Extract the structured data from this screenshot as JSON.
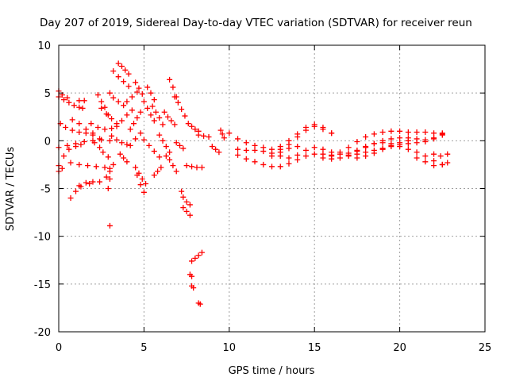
{
  "chart_data": {
    "type": "scatter",
    "title": "Day 207 of 2019, Sidereal Day-to-day VTEC variation (SDTVAR) for receiver reun",
    "xlabel": "GPS time / hours",
    "ylabel": "SDTVAR / TECUs",
    "xlim": [
      0,
      25
    ],
    "ylim": [
      -20,
      10
    ],
    "xticks": [
      "0",
      "5",
      "10",
      "15",
      "20",
      "25"
    ],
    "yticks": [
      "-20",
      "-15",
      "-10",
      "-5",
      "0",
      "5",
      "10"
    ],
    "grid": true,
    "marker": "+",
    "series": [
      {
        "name": "a",
        "x": [
          0.0,
          0.3,
          0.6,
          0.9,
          1.2,
          1.4
        ],
        "y": [
          4.6,
          4.3,
          4.0,
          3.7,
          3.5,
          3.4
        ]
      },
      {
        "name": "b",
        "x": [
          0.0,
          0.2,
          0.5
        ],
        "y": [
          5.2,
          4.8,
          4.5
        ]
      },
      {
        "name": "c",
        "x": [
          0.1,
          0.4,
          0.8,
          1.2,
          1.6,
          2.0
        ],
        "y": [
          1.8,
          1.4,
          1.1,
          0.9,
          0.8,
          0.8
        ]
      },
      {
        "name": "d",
        "x": [
          0.0,
          0.3,
          0.6,
          1.0,
          1.3
        ],
        "y": [
          -2.6,
          -1.6,
          -0.9,
          -0.6,
          -0.4
        ]
      },
      {
        "name": "e",
        "x": [
          0.0,
          0.5,
          1.0,
          1.5,
          2.0,
          2.5,
          3.0
        ],
        "y": [
          -0.7,
          -0.5,
          -0.3,
          -0.1,
          0.0,
          0.1,
          0.0
        ]
      },
      {
        "name": "f",
        "x": [
          0.0,
          0.2
        ],
        "y": [
          -3.2,
          -2.9
        ]
      },
      {
        "name": "g",
        "x": [
          0.7,
          1.0,
          1.3,
          1.6,
          2.0
        ],
        "y": [
          -6.0,
          -5.3,
          -4.8,
          -4.4,
          -4.3
        ]
      },
      {
        "name": "h",
        "x": [
          0.7,
          1.2,
          1.7,
          2.2,
          2.7,
          3.0
        ],
        "y": [
          -2.3,
          -2.5,
          -2.6,
          -2.7,
          -2.8,
          -2.9
        ]
      },
      {
        "name": "i",
        "x": [
          1.2,
          1.8,
          2.4,
          3.0
        ],
        "y": [
          -4.7,
          -4.5,
          -4.3,
          -4.0
        ]
      },
      {
        "name": "j",
        "x": [
          0.8,
          1.2,
          1.6,
          2.0,
          2.4
        ],
        "y": [
          2.2,
          1.8,
          1.2,
          0.6,
          0.2
        ]
      },
      {
        "name": "k",
        "x": [
          1.2,
          1.5
        ],
        "y": [
          4.2,
          4.2
        ]
      },
      {
        "name": "l",
        "x": [
          1.9,
          2.3,
          2.7,
          3.1
        ],
        "y": [
          1.8,
          1.4,
          1.2,
          1.3
        ]
      },
      {
        "name": "m",
        "x": [
          2.1,
          2.4,
          2.6,
          2.9
        ],
        "y": [
          -0.2,
          -0.7,
          -1.2,
          -1.7
        ]
      },
      {
        "name": "n",
        "x": [
          2.3,
          2.5,
          2.7,
          2.9
        ],
        "y": [
          4.8,
          4.1,
          3.5,
          2.7
        ]
      },
      {
        "name": "o",
        "x": [
          2.5,
          2.8,
          3.1,
          3.4
        ],
        "y": [
          3.4,
          2.8,
          2.3,
          1.8
        ]
      },
      {
        "name": "p",
        "x": [
          2.8,
          3.0,
          3.2
        ],
        "y": [
          -3.8,
          -3.2,
          -2.5
        ]
      },
      {
        "name": "q",
        "x": [
          3.0,
          3.2,
          3.5,
          3.8
        ],
        "y": [
          5.0,
          4.5,
          4.1,
          3.7
        ]
      },
      {
        "name": "r",
        "x": [
          3.2,
          3.5,
          3.8,
          4.1
        ],
        "y": [
          7.3,
          6.7,
          6.2,
          5.7
        ]
      },
      {
        "name": "s",
        "x": [
          3.5,
          3.7,
          3.9,
          4.1
        ],
        "y": [
          8.1,
          7.8,
          7.4,
          7.0
        ]
      },
      {
        "name": "t",
        "x": [
          3.1,
          3.4,
          3.7,
          4.0
        ],
        "y": [
          0.5,
          0.1,
          -0.2,
          -0.4
        ]
      },
      {
        "name": "u",
        "x": [
          3.4,
          3.7,
          4.0,
          4.3
        ],
        "y": [
          1.5,
          2.1,
          2.7,
          3.2
        ]
      },
      {
        "name": "v",
        "x": [
          3.6,
          3.8,
          4.0
        ],
        "y": [
          -1.4,
          -1.8,
          -2.2
        ]
      },
      {
        "name": "w",
        "x": [
          4.0,
          4.3,
          4.6
        ],
        "y": [
          4.1,
          4.6,
          5.1
        ]
      },
      {
        "name": "x1",
        "x": [
          4.2,
          4.4,
          4.6,
          4.8
        ],
        "y": [
          1.2,
          1.8,
          2.4,
          3.0
        ]
      },
      {
        "name": "x2",
        "x": [
          4.2,
          4.5,
          4.8
        ],
        "y": [
          -0.5,
          0.2,
          0.8
        ]
      },
      {
        "name": "x3",
        "x": [
          4.5,
          4.7,
          4.9
        ],
        "y": [
          6.1,
          5.5,
          4.9
        ]
      },
      {
        "name": "x4",
        "x": [
          4.5,
          4.6,
          4.8,
          5.0
        ],
        "y": [
          -2.8,
          -3.6,
          -4.6,
          -5.4
        ]
      },
      {
        "name": "x5",
        "x": [
          4.7,
          4.9,
          5.1
        ],
        "y": [
          -3.4,
          -4.0,
          -4.5
        ]
      },
      {
        "name": "x6",
        "x": [
          5.0,
          5.2,
          5.4,
          5.6
        ],
        "y": [
          4.1,
          3.4,
          2.7,
          2.1
        ]
      },
      {
        "name": "x7",
        "x": [
          5.0,
          5.3,
          5.6,
          5.9
        ],
        "y": [
          0.1,
          -0.5,
          -1.1,
          -1.7
        ]
      },
      {
        "name": "x8",
        "x": [
          5.2,
          5.4,
          5.6
        ],
        "y": [
          5.6,
          5.0,
          4.3
        ]
      },
      {
        "name": "x9",
        "x": [
          5.5,
          5.7,
          5.9,
          6.1
        ],
        "y": [
          3.6,
          3.0,
          2.4,
          1.7
        ]
      },
      {
        "name": "x10",
        "x": [
          5.6,
          5.8,
          6.0
        ],
        "y": [
          -3.6,
          -3.2,
          -2.8
        ]
      },
      {
        "name": "x11",
        "x": [
          5.9,
          6.1,
          6.3,
          6.5
        ],
        "y": [
          0.6,
          0.0,
          -0.6,
          -1.2
        ]
      },
      {
        "name": "x12",
        "x": [
          6.2,
          6.4,
          6.6,
          6.8
        ],
        "y": [
          3.0,
          2.5,
          2.1,
          1.7
        ]
      },
      {
        "name": "x13",
        "x": [
          6.5,
          6.7,
          6.9
        ],
        "y": [
          6.4,
          5.6,
          4.6
        ]
      },
      {
        "name": "x14",
        "x": [
          6.3,
          6.5,
          6.7,
          6.9
        ],
        "y": [
          -1.6,
          -2.0,
          -2.6,
          -3.2
        ]
      },
      {
        "name": "x15",
        "x": [
          6.8,
          7.0,
          7.2,
          7.4
        ],
        "y": [
          4.6,
          4.0,
          3.3,
          2.6
        ]
      },
      {
        "name": "x16",
        "x": [
          6.9,
          7.1,
          7.3
        ],
        "y": [
          -0.2,
          -0.5,
          -0.8
        ]
      },
      {
        "name": "x17",
        "x": [
          7.2,
          7.3,
          7.5,
          7.7
        ],
        "y": [
          -5.3,
          -5.9,
          -6.4,
          -6.7
        ]
      },
      {
        "name": "x18",
        "x": [
          7.3,
          7.5,
          7.7
        ],
        "y": [
          -7.0,
          -7.4,
          -7.8
        ]
      },
      {
        "name": "x19",
        "x": [
          7.5,
          7.8,
          8.1,
          8.4
        ],
        "y": [
          -2.6,
          -2.7,
          -2.8,
          -2.8
        ]
      },
      {
        "name": "x20",
        "x": [
          7.6,
          7.8,
          8.0,
          8.2
        ],
        "y": [
          1.8,
          1.5,
          1.2,
          1.0
        ]
      },
      {
        "name": "x21",
        "x": [
          7.8,
          8.0,
          8.2,
          8.4
        ],
        "y": [
          -12.6,
          -12.3,
          -12.0,
          -11.7
        ]
      },
      {
        "name": "x22",
        "x": [
          7.7,
          7.8
        ],
        "y": [
          -14.0,
          -14.2
        ]
      },
      {
        "name": "x23",
        "x": [
          7.8,
          7.9
        ],
        "y": [
          -15.2,
          -15.4
        ]
      },
      {
        "name": "x24",
        "x": [
          8.2,
          8.3
        ],
        "y": [
          -17.0,
          -17.1
        ]
      },
      {
        "name": "x25",
        "x": [
          8.2,
          8.5,
          8.8
        ],
        "y": [
          0.6,
          0.5,
          0.4
        ]
      },
      {
        "name": "x26",
        "x": [
          3.0,
          2.9
        ],
        "y": [
          -8.9,
          -5.0
        ]
      },
      {
        "name": "x27",
        "x": [
          9.0,
          9.2,
          9.4
        ],
        "y": [
          -0.6,
          -0.9,
          -1.2
        ]
      },
      {
        "name": "x28",
        "x": [
          9.5,
          9.6,
          9.7
        ],
        "y": [
          1.1,
          0.7,
          0.3
        ]
      },
      {
        "name": "x29",
        "x": [
          10.0,
          10.5,
          11.0,
          11.5,
          12.0,
          12.5,
          13.0,
          13.5,
          14.0
        ],
        "y": [
          0.8,
          0.2,
          -0.2,
          -0.5,
          -0.7,
          -0.9,
          -0.9,
          -0.8,
          -0.6
        ]
      },
      {
        "name": "x30",
        "x": [
          10.5,
          11.0,
          11.5,
          12.0,
          12.5,
          13.0,
          13.5,
          14.0,
          14.5,
          15.0,
          15.5,
          16.0
        ],
        "y": [
          -1.5,
          -1.9,
          -2.2,
          -2.5,
          -2.7,
          -2.7,
          -2.4,
          -2.0,
          -1.6,
          -1.4,
          -1.4,
          -1.5
        ]
      },
      {
        "name": "x31",
        "x": [
          10.5,
          11.0,
          11.5,
          12.0,
          12.5,
          13.0,
          13.5,
          14.0,
          14.5,
          15.0,
          15.5,
          16.0,
          16.5,
          17.0,
          17.5,
          18.0,
          18.5,
          19.0,
          19.5,
          20.0,
          20.5,
          21.0,
          21.5,
          22.0,
          22.5
        ],
        "y": [
          -0.9,
          -1.0,
          -1.0,
          -1.1,
          -1.3,
          -1.6,
          -1.8,
          -1.5,
          -1.0,
          -0.7,
          -0.9,
          -1.2,
          -1.4,
          -1.3,
          -1.0,
          -0.6,
          -0.3,
          -0.2,
          -0.3,
          -0.6,
          -0.9,
          -1.2,
          -1.6,
          -2.1,
          -2.5
        ]
      },
      {
        "name": "x32",
        "x": [
          12.5,
          13.0,
          13.5,
          14.0,
          14.5,
          15.0,
          15.5,
          16.0
        ],
        "y": [
          -1.6,
          -1.2,
          -0.4,
          0.4,
          1.1,
          1.7,
          1.4,
          0.8
        ]
      },
      {
        "name": "x33",
        "x": [
          13.0,
          13.5,
          14.0,
          14.5,
          15.0,
          15.5,
          16.0
        ],
        "y": [
          -0.6,
          0.0,
          0.7,
          1.4,
          1.5,
          1.2,
          0.8
        ]
      },
      {
        "name": "x34",
        "x": [
          15.5,
          16.0,
          16.5,
          17.0,
          17.5,
          18.0,
          18.5,
          19.0,
          19.5,
          20.0,
          20.5,
          21.0,
          21.5,
          22.0,
          22.5
        ],
        "y": [
          -1.8,
          -1.9,
          -1.8,
          -1.6,
          -1.4,
          -1.2,
          -1.0,
          -0.8,
          -0.6,
          -0.4,
          -0.3,
          -0.2,
          -0.1,
          0.2,
          0.6
        ]
      },
      {
        "name": "x35",
        "x": [
          16.0,
          16.5,
          17.0,
          17.5,
          18.0,
          18.5,
          19.0,
          19.5,
          20.0,
          20.5,
          21.0,
          21.5,
          22.0,
          22.5
        ],
        "y": [
          -1.6,
          -1.2,
          -0.7,
          -0.1,
          0.4,
          0.7,
          0.9,
          1.0,
          1.0,
          0.9,
          0.9,
          0.9,
          0.8,
          0.7
        ]
      },
      {
        "name": "x36",
        "x": [
          17.0,
          17.5,
          18.0,
          18.5,
          19.0,
          19.5,
          20.0,
          20.5,
          21.0,
          21.5,
          22.0,
          22.5
        ],
        "y": [
          -1.5,
          -1.1,
          -0.7,
          -0.3,
          0.0,
          0.2,
          0.3,
          0.3,
          0.2,
          0.1,
          0.3,
          0.8
        ]
      },
      {
        "name": "x37",
        "x": [
          17.5,
          18.0,
          18.5,
          19.0,
          19.5,
          20.0,
          20.5
        ],
        "y": [
          -1.8,
          -1.6,
          -1.3,
          -0.9,
          -0.5,
          -0.2,
          0.0
        ]
      },
      {
        "name": "x38",
        "x": [
          21.0,
          21.5,
          22.0,
          22.5,
          22.8
        ],
        "y": [
          -1.8,
          -2.2,
          -2.6,
          -2.5,
          -2.3
        ]
      },
      {
        "name": "x39",
        "x": [
          22.0,
          22.4,
          22.8
        ],
        "y": [
          -1.4,
          -1.6,
          -1.4
        ]
      }
    ]
  }
}
